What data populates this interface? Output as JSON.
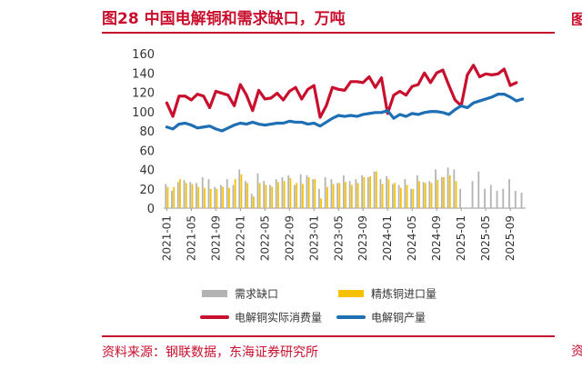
{
  "figure_title": "图28  中国电解铜和需求缺口，万吨",
  "source_note": "资料来源：钢联数据，东海证券研究所",
  "edge_glyph_top": "图",
  "edge_glyph_bottom": "资",
  "colors": {
    "red": "#c8102e",
    "blue": "#1f6fb5",
    "gray": "#b3b3b3",
    "gold": "#f5c100",
    "axis": "#999999",
    "text": "#333333"
  },
  "chart_data": {
    "type": "bar+line",
    "x_tick_labels": [
      "2021-01",
      "2021-05",
      "2021-09",
      "2022-01",
      "2022-05",
      "2022-09",
      "2023-01",
      "2023-05",
      "2023-09",
      "2024-01",
      "2024-05",
      "2024-09",
      "2025-01",
      "2025-05",
      "2025-09"
    ],
    "y_ticks": [
      0,
      20,
      40,
      60,
      80,
      100,
      120,
      140,
      160
    ],
    "ylim": [
      0,
      160
    ],
    "months": [
      "2021-01",
      "2021-02",
      "2021-03",
      "2021-04",
      "2021-05",
      "2021-06",
      "2021-07",
      "2021-08",
      "2021-09",
      "2021-10",
      "2021-11",
      "2021-12",
      "2022-01",
      "2022-02",
      "2022-03",
      "2022-04",
      "2022-05",
      "2022-06",
      "2022-07",
      "2022-08",
      "2022-09",
      "2022-10",
      "2022-11",
      "2022-12",
      "2023-01",
      "2023-02",
      "2023-03",
      "2023-04",
      "2023-05",
      "2023-06",
      "2023-07",
      "2023-08",
      "2023-09",
      "2023-10",
      "2023-11",
      "2023-12",
      "2024-01",
      "2024-02",
      "2024-03",
      "2024-04",
      "2024-05",
      "2024-06",
      "2024-07",
      "2024-08",
      "2024-09",
      "2024-10",
      "2024-11",
      "2024-12",
      "2025-01",
      "2025-02",
      "2025-03",
      "2025-04",
      "2025-05",
      "2025-06",
      "2025-07",
      "2025-08",
      "2025-09",
      "2025-10",
      "2025-11"
    ],
    "series": [
      {
        "name": "需求缺口",
        "kind": "bar",
        "color": "#b3b3b3",
        "values": [
          25,
          18,
          27,
          29,
          27,
          26,
          32,
          30,
          22,
          24,
          30,
          24,
          40,
          28,
          15,
          36,
          28,
          24,
          30,
          32,
          34,
          24,
          35,
          34,
          30,
          20,
          32,
          30,
          26,
          34,
          28,
          30,
          34,
          32,
          38,
          30,
          33,
          25,
          24,
          30,
          20,
          34,
          27,
          28,
          40,
          32,
          42,
          40,
          20,
          null,
          28,
          38,
          20,
          24,
          18,
          20,
          30,
          18,
          16
        ]
      },
      {
        "name": "精炼铜进口量",
        "kind": "bar",
        "color": "#f5c100",
        "values": [
          22,
          22,
          30,
          26,
          25,
          22,
          21,
          20,
          20,
          22,
          21,
          30,
          35,
          26,
          12,
          26,
          24,
          22,
          27,
          28,
          31,
          26,
          25,
          32,
          30,
          10,
          22,
          25,
          26,
          27,
          24,
          26,
          32,
          33,
          38,
          25,
          30,
          26,
          21,
          24,
          20,
          28,
          26,
          26,
          29,
          32,
          34,
          28,
          null,
          null,
          null,
          null,
          null,
          null,
          null,
          null,
          null,
          null,
          null
        ]
      },
      {
        "name": "电解铜实际消费量",
        "kind": "line",
        "color": "#c8102e",
        "values": [
          109,
          95,
          116,
          116,
          112,
          118,
          116,
          104,
          121,
          119,
          117,
          106,
          128,
          117,
          101,
          122,
          113,
          114,
          119,
          112,
          121,
          125,
          113,
          123,
          127,
          94,
          106,
          125,
          123,
          122,
          131,
          131,
          130,
          136,
          125,
          135,
          98,
          117,
          121,
          117,
          126,
          128,
          140,
          130,
          140,
          143,
          127,
          112,
          106,
          138,
          148,
          136,
          139,
          138,
          139,
          144,
          127,
          130,
          null
        ]
      },
      {
        "name": "电解铜产量",
        "kind": "line",
        "color": "#1f6fb5",
        "values": [
          84,
          82,
          87,
          88,
          86,
          83,
          84,
          85,
          82,
          80,
          83,
          86,
          88,
          87,
          89,
          87,
          86,
          87,
          88,
          88,
          90,
          89,
          89,
          87,
          88,
          85,
          89,
          93,
          96,
          95,
          96,
          95,
          97,
          98,
          99,
          99,
          101,
          93,
          97,
          95,
          98,
          97,
          99,
          100,
          100,
          99,
          97,
          102,
          106,
          104,
          109,
          111,
          113,
          115,
          118,
          118,
          115,
          111,
          113
        ]
      }
    ],
    "legend": [
      {
        "label": "需求缺口",
        "marker": "box",
        "color": "#b3b3b3"
      },
      {
        "label": "精炼铜进口量",
        "marker": "box",
        "color": "#f5c100"
      },
      {
        "label": "电解铜实际消费量",
        "marker": "line",
        "color": "#c8102e"
      },
      {
        "label": "电解铜产量",
        "marker": "line",
        "color": "#1f6fb5"
      }
    ],
    "legend_position": "bottom",
    "grid": false
  }
}
